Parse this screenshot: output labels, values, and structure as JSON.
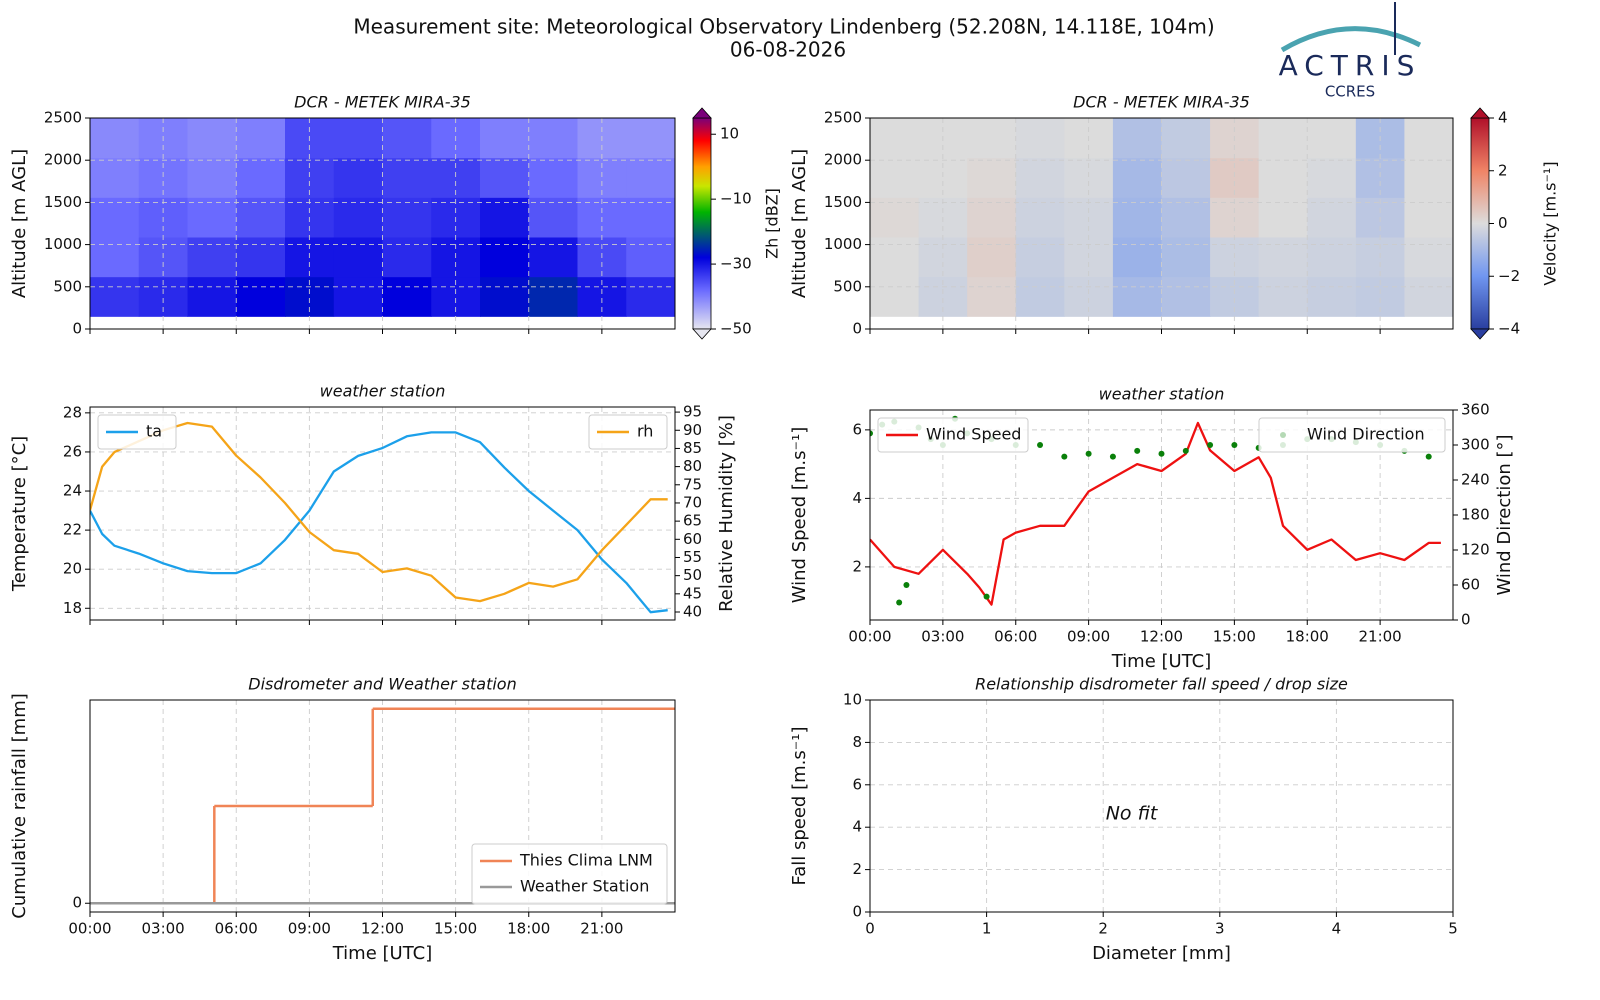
{
  "header": {
    "title": "Measurement site: Meteorological Observatory Lindenberg (52.208N, 14.118E, 104m)",
    "date": "06-08-2026",
    "logo": "ACTRIS",
    "logo_subtitle": "CCRES"
  },
  "chart_data": [
    {
      "type": "heatmap",
      "title": "DCR - METEK MIRA-35",
      "ylabel": "Altitude [m AGL]",
      "xlim": [
        0,
        24
      ],
      "xticks": [
        0,
        3,
        6,
        9,
        12,
        15,
        18,
        21
      ],
      "xticklabels": false,
      "ylim": [
        0,
        2500
      ],
      "yticks": [
        0,
        500,
        1000,
        1500,
        2000,
        2500
      ],
      "grid": true,
      "xbins": [
        0,
        2,
        4,
        6,
        8,
        10,
        12,
        14,
        16,
        18,
        20,
        22,
        24
      ],
      "ybins": [
        150,
        620,
        1090,
        1560,
        2030,
        2500
      ],
      "values": [
        [
          -33,
          -32,
          -30,
          -28,
          -27,
          -30,
          -28,
          -30,
          -27,
          -25,
          -30,
          -32
        ],
        [
          -38,
          -36,
          -34,
          -33,
          -30,
          -30,
          -32,
          -30,
          -28,
          -30,
          -35,
          -37
        ],
        [
          -38,
          -37,
          -38,
          -36,
          -33,
          -32,
          -33,
          -32,
          -30,
          -36,
          -38,
          -38
        ],
        [
          -40,
          -39,
          -40,
          -38,
          -34,
          -33,
          -34,
          -34,
          -36,
          -38,
          -40,
          -40
        ],
        [
          -41,
          -40,
          -41,
          -40,
          -35,
          -35,
          -36,
          -38,
          -40,
          -40,
          -42,
          -42
        ]
      ],
      "zlabel": "Zh [dBZ]",
      "zlim": [
        -50,
        15
      ],
      "zticks": [
        10,
        {
          "value": -10,
          "label": "−10"
        },
        {
          "value": -30,
          "label": "−30"
        },
        {
          "value": -50,
          "label": "−50"
        }
      ],
      "colorscale": [
        [
          -50,
          "#e6e6f0"
        ],
        [
          -38,
          "#6a6aff"
        ],
        [
          -28,
          "#0000dd"
        ],
        [
          -14,
          "#00b400"
        ],
        [
          -6,
          "#c8e600"
        ],
        [
          0,
          "#ffa000"
        ],
        [
          8,
          "#ff0000"
        ],
        [
          15,
          "#7a007a"
        ]
      ]
    },
    {
      "type": "heatmap",
      "title": "DCR - METEK MIRA-35",
      "ylabel": "Altitude [m AGL]",
      "xlim": [
        0,
        24
      ],
      "xticks": [
        0,
        3,
        6,
        9,
        12,
        15,
        18,
        21
      ],
      "xticklabels": false,
      "ylim": [
        0,
        2500
      ],
      "yticks": [
        0,
        500,
        1000,
        1500,
        2000,
        2500
      ],
      "grid": true,
      "xbins": [
        0,
        2,
        4,
        6,
        8,
        10,
        12,
        14,
        16,
        18,
        20,
        22,
        24
      ],
      "ybins": [
        150,
        620,
        1090,
        1560,
        2030,
        2500
      ],
      "values": [
        [
          0,
          -0.3,
          0.2,
          -0.5,
          -0.3,
          -1,
          -0.8,
          -0.5,
          -0.3,
          -0.4,
          -0.5,
          -0.2
        ],
        [
          0,
          -0.2,
          0.3,
          -0.4,
          -0.2,
          -1.2,
          -0.9,
          -0.3,
          -0.2,
          -0.3,
          -0.4,
          -0.1
        ],
        [
          0.1,
          -0.1,
          0.2,
          -0.3,
          -0.2,
          -1.1,
          -0.8,
          0.2,
          0,
          -0.2,
          -0.6,
          0
        ],
        [
          0,
          0,
          0.1,
          -0.2,
          -0.1,
          -1,
          -0.6,
          0.4,
          0,
          -0.1,
          -0.8,
          0
        ],
        [
          0,
          0,
          0,
          -0.1,
          0,
          -0.8,
          -0.5,
          0.2,
          0,
          0,
          -0.9,
          0
        ]
      ],
      "zlabel": "Velocity [m.s⁻¹]",
      "zlim": [
        -4,
        4
      ],
      "zticks": [
        4,
        2,
        0,
        {
          "value": -2,
          "label": "−2"
        },
        {
          "value": -4,
          "label": "−4"
        }
      ],
      "colorscale": [
        [
          -4,
          "#2a3fa0"
        ],
        [
          -2,
          "#7096f0"
        ],
        [
          0,
          "#dcdcdc"
        ],
        [
          2,
          "#f08466"
        ],
        [
          4,
          "#b0102a"
        ]
      ]
    },
    {
      "type": "line",
      "title": "weather station",
      "ylabel": "Temperature [°C]",
      "y2label": "Relative Humidity [%]",
      "xlim": [
        0,
        24
      ],
      "xticks": [
        0,
        3,
        6,
        9,
        12,
        15,
        18,
        21
      ],
      "xticklabels": false,
      "ylim": [
        17.4,
        28.3
      ],
      "yticks": [
        18,
        20,
        22,
        24,
        26,
        28
      ],
      "y2lim": [
        37.8,
        96.4
      ],
      "y2ticks": [
        40,
        45,
        50,
        55,
        60,
        65,
        70,
        75,
        80,
        85,
        90,
        95
      ],
      "grid": true,
      "series": [
        {
          "name": "ta",
          "color": "#1ca0ea",
          "legend": "upper left",
          "x": [
            0,
            0.5,
            1,
            2,
            3,
            4,
            5,
            6,
            7,
            8,
            9,
            10,
            11,
            12,
            13,
            14,
            15,
            16,
            17,
            18,
            19,
            20,
            21,
            22,
            23,
            23.7
          ],
          "values": [
            23,
            21.8,
            21.2,
            20.8,
            20.3,
            19.9,
            19.8,
            19.8,
            20.3,
            21.5,
            23,
            25,
            25.8,
            26.2,
            26.8,
            27,
            27,
            26.5,
            25.2,
            24,
            23,
            22,
            20.5,
            19.3,
            17.8,
            17.9
          ]
        },
        {
          "name": "rh",
          "color": "#f5a418",
          "axis": "y2",
          "legend": "upper right",
          "x": [
            0,
            0.5,
            1,
            2,
            3,
            4,
            5,
            6,
            7,
            8,
            9,
            10,
            11,
            12,
            13,
            14,
            15,
            16,
            17,
            18,
            19,
            20,
            21,
            22,
            23,
            23.7
          ],
          "values": [
            68,
            80,
            84,
            87,
            90,
            92,
            91,
            83,
            77,
            70,
            62,
            57,
            56,
            51,
            52,
            50,
            44,
            43,
            45,
            48,
            47,
            49,
            57,
            64,
            71,
            71
          ]
        }
      ]
    },
    {
      "type": "line",
      "title": "weather station",
      "ylabel": "Wind Speed [m.s⁻¹]",
      "y2label": "Wind Direction [°]",
      "xlabel": "Time [UTC]",
      "xlim": [
        0,
        24
      ],
      "xticks": [
        {
          "value": 0,
          "label": "00:00"
        },
        {
          "value": 3,
          "label": "03:00"
        },
        {
          "value": 6,
          "label": "06:00"
        },
        {
          "value": 9,
          "label": "09:00"
        },
        {
          "value": 12,
          "label": "12:00"
        },
        {
          "value": 15,
          "label": "15:00"
        },
        {
          "value": 18,
          "label": "18:00"
        },
        {
          "value": 21,
          "label": "21:00"
        }
      ],
      "ylim": [
        0.45,
        6.58
      ],
      "yticks": [
        2,
        4,
        6
      ],
      "y2lim": [
        0,
        360
      ],
      "y2ticks": [
        0,
        60,
        120,
        180,
        240,
        300,
        360
      ],
      "grid": true,
      "series": [
        {
          "name": "Wind Speed",
          "color": "#ee1111",
          "legend": "upper left",
          "x": [
            0,
            1,
            2,
            3,
            4,
            4.5,
            5,
            5.5,
            6,
            7,
            8,
            9,
            10,
            11,
            12,
            13,
            13.5,
            14,
            15,
            16,
            16.5,
            17,
            18,
            19,
            20,
            21,
            22,
            23,
            23.5
          ],
          "values": [
            2.8,
            2,
            1.8,
            2.5,
            1.8,
            1.4,
            0.9,
            2.8,
            3,
            3.2,
            3.2,
            4.2,
            4.6,
            5,
            4.8,
            5.3,
            6.2,
            5.4,
            4.8,
            5.2,
            4.6,
            3.2,
            2.5,
            2.8,
            2.2,
            2.4,
            2.2,
            2.7,
            2.7
          ]
        },
        {
          "name": "Wind Direction",
          "color": "#0a800a",
          "axis": "y2",
          "marker": "dot",
          "legend": "upper right",
          "x": [
            0,
            0.5,
            1,
            1.2,
            1.5,
            2,
            2.5,
            3,
            3.5,
            4,
            4.8,
            5,
            6,
            7,
            8,
            9,
            10,
            11,
            12,
            13,
            14,
            15,
            16,
            17,
            18,
            19,
            20,
            21,
            22,
            23
          ],
          "values": [
            320,
            335,
            340,
            30,
            60,
            330,
            310,
            300,
            345,
            320,
            40,
            310,
            300,
            300,
            280,
            285,
            280,
            290,
            285,
            290,
            300,
            300,
            295,
            300,
            310,
            310,
            305,
            300,
            290,
            280
          ]
        }
      ]
    },
    {
      "type": "line",
      "title": "Disdrometer and Weather station",
      "ylabel": "Cumulative rainfall [mm]",
      "xlabel": "Time [UTC]",
      "xlim": [
        0,
        24
      ],
      "xticks": [
        {
          "value": 0,
          "label": "00:00"
        },
        {
          "value": 3,
          "label": "03:00"
        },
        {
          "value": 6,
          "label": "06:00"
        },
        {
          "value": 9,
          "label": "09:00"
        },
        {
          "value": 12,
          "label": "12:00"
        },
        {
          "value": 15,
          "label": "15:00"
        },
        {
          "value": 18,
          "label": "18:00"
        },
        {
          "value": 21,
          "label": "21:00"
        }
      ],
      "ylim": [
        -0.009,
        0.209
      ],
      "yticks": [
        0
      ],
      "grid": true,
      "series": [
        {
          "name": "Thies Clima LNM",
          "color": "#f08456",
          "drawstyle": "steps-post",
          "legend": "lower right",
          "x": [
            0,
            5.1,
            11.6
          ],
          "values": [
            0,
            0.1,
            0.2
          ]
        },
        {
          "name": "Weather Station",
          "color": "#999999",
          "drawstyle": "steps-post",
          "legend": "lower right",
          "x": [
            0
          ],
          "values": [
            0
          ]
        }
      ]
    },
    {
      "type": "scatter",
      "title": "Relationship disdrometer fall speed / drop size",
      "ylabel": "Fall speed [m.s⁻¹]",
      "xlabel": "Diameter [mm]",
      "xlim": [
        0,
        5
      ],
      "xticks": [
        0,
        1,
        2,
        3,
        4,
        5
      ],
      "ylim": [
        0,
        10
      ],
      "yticks": [
        0,
        2,
        4,
        6,
        8,
        10
      ],
      "grid": true,
      "annotation": "No fit",
      "series": []
    }
  ]
}
